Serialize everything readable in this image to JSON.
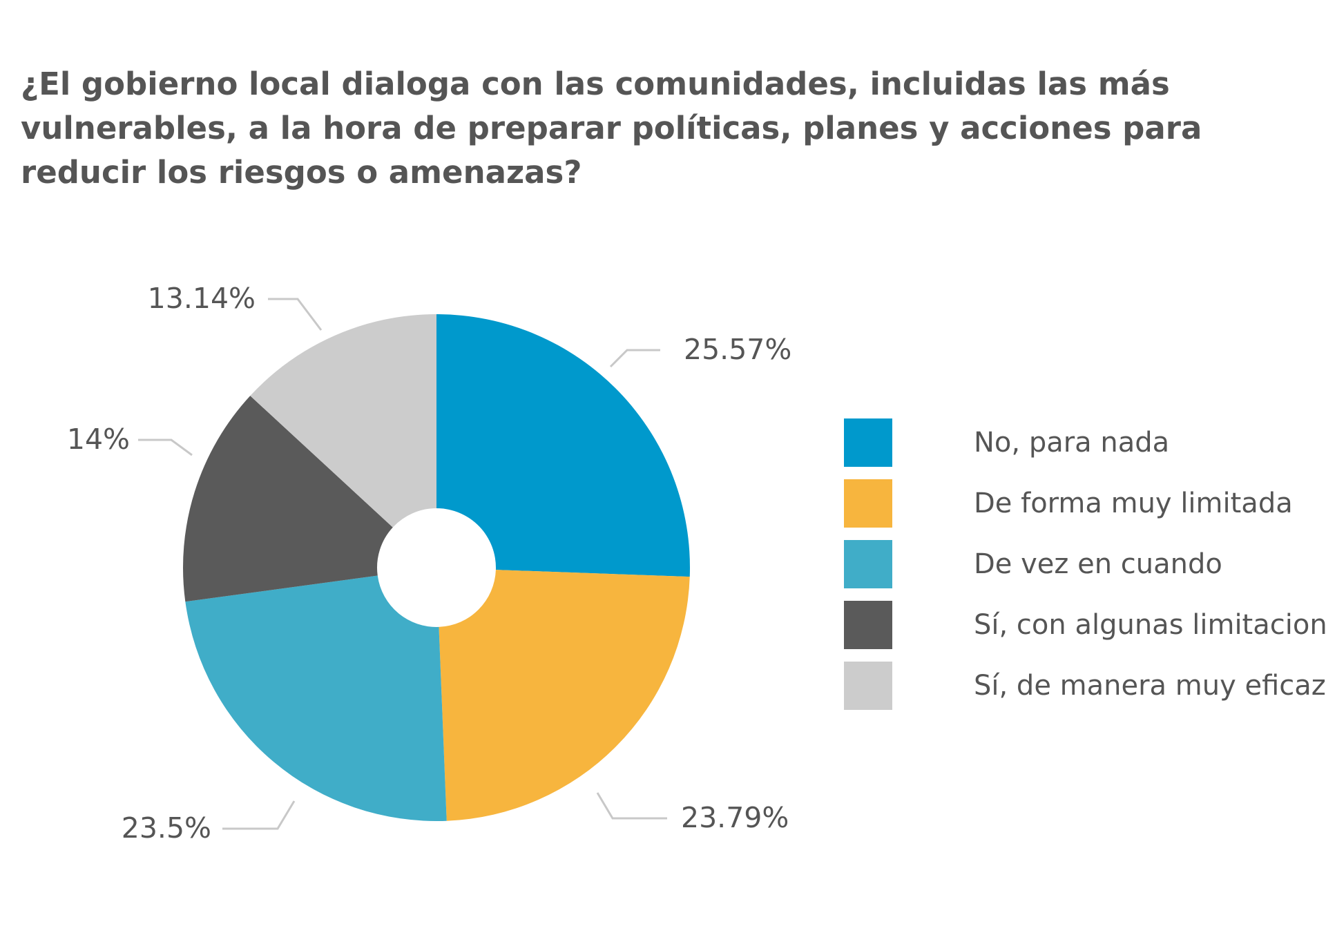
{
  "chart_data": {
    "type": "pie",
    "title": "¿El gobierno local dialoga con las comunidades, incluidas las más vulnerables, a la hora de preparar políticas, planes y acciones para reducir los riesgos o amenazas?",
    "legend_position": "right",
    "donut": true,
    "slices": [
      {
        "name": "No, para nada",
        "value": 25.57,
        "label": "25.57%",
        "color": "#0099CC"
      },
      {
        "name": "De forma muy limitada",
        "value": 23.79,
        "label": "23.79%",
        "color": "#F7B53E"
      },
      {
        "name": "De vez en cuando",
        "value": 23.5,
        "label": "23.5%",
        "color": "#40ADC8"
      },
      {
        "name": "Sí, con algunas limitaciones",
        "value": 14,
        "label": "14%",
        "color": "#5A5A5A"
      },
      {
        "name": "Sí, de manera muy eficaz",
        "value": 13.14,
        "label": "13.14%",
        "color": "#CCCCCC"
      }
    ]
  }
}
